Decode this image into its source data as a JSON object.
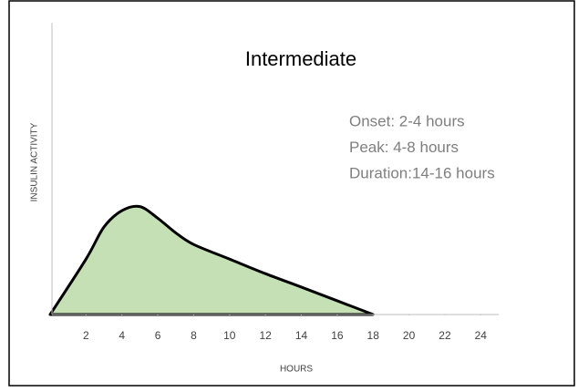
{
  "chart_data": {
    "type": "area",
    "title": "Intermediate",
    "x_label": "HOURS",
    "y_label": "INSULIN ACTIVITY",
    "annotations": [
      "Onset: 2-4 hours",
      "Peak: 4-8 hours",
      "Duration:14-16 hours"
    ],
    "series": [
      {
        "name": "Intermediate",
        "color": "#c5e0b4",
        "x": [
          0,
          2,
          3,
          4,
          5,
          6,
          7,
          8,
          10,
          12,
          14,
          16,
          18
        ],
        "values": [
          0,
          19,
          30,
          35.6,
          37,
          33,
          28,
          24,
          19,
          14,
          9.4,
          4.7,
          0
        ]
      }
    ],
    "xlim": [
      0,
      25
    ],
    "xticks": [
      2,
      4,
      6,
      8,
      10,
      12,
      14,
      16,
      18,
      20,
      22,
      24
    ],
    "ylim": [
      0,
      100
    ],
    "grid": false
  }
}
